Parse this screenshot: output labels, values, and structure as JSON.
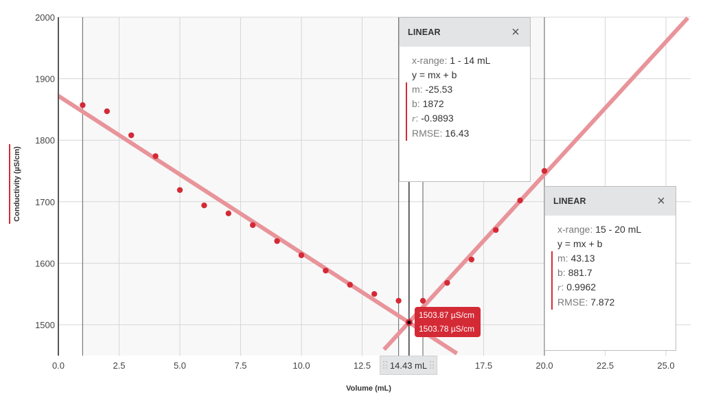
{
  "chart_data": {
    "type": "scatter",
    "title": "",
    "xlabel": "Volume (mL)",
    "ylabel": "Conductivity (µS/cm)",
    "xlim": [
      0,
      25.9
    ],
    "ylim": [
      1450,
      2000
    ],
    "x_ticks": [
      "0.0",
      "2.5",
      "5.0",
      "7.5",
      "10.0",
      "12.5",
      "15.0",
      "17.5",
      "20.0",
      "22.5",
      "25.0"
    ],
    "y_ticks": [
      "1500",
      "1600",
      "1700",
      "1800",
      "1900",
      "2000"
    ],
    "grid": true,
    "series": [
      {
        "name": "Conductivity",
        "color": "#d42a36",
        "x": [
          1,
          2,
          3,
          4,
          5,
          6,
          7,
          8,
          9,
          10,
          11,
          12,
          13,
          14,
          15,
          16,
          17,
          18,
          19,
          20
        ],
        "y": [
          1857,
          1847,
          1808,
          1774,
          1719,
          1694,
          1681,
          1662,
          1636,
          1613,
          1588,
          1565,
          1550,
          1539,
          1539,
          1568,
          1606,
          1654,
          1702,
          1750
        ]
      }
    ],
    "fits": [
      {
        "type": "linear",
        "x_range": [
          1,
          14
        ],
        "m": -25.53,
        "b": 1872,
        "r": -0.9893,
        "rmse": 16.43,
        "draw_from": 0,
        "draw_to": 16.4,
        "color": "#e8949a"
      },
      {
        "type": "linear",
        "x_range": [
          15,
          20
        ],
        "m": 43.13,
        "b": 881.7,
        "r": 0.9962,
        "rmse": 7.872,
        "draw_from": 13.4,
        "draw_to": 25.9,
        "color": "#e8949a"
      }
    ],
    "selection_regions": [
      [
        1,
        14
      ],
      [
        15,
        20
      ]
    ],
    "cursor": {
      "x": 14.43,
      "label": "14.43 mL",
      "y": 1503.8
    }
  },
  "axes": {
    "xlabel": "Volume (mL)",
    "ylabel": "Conductivity (µS/cm)"
  },
  "panels": [
    {
      "title": "LINEAR",
      "close_icon": "×",
      "x_range_label": "x-range:",
      "x_range_value": "1 - 14 mL",
      "equation": "y = mx + b",
      "m_label": "m:",
      "m_value": "-25.53",
      "b_label": "b:",
      "b_value": "1872",
      "r_label": "r",
      "r_sep": ":",
      "r_value": "-0.9893",
      "rmse_label": "RMSE:",
      "rmse_value": "16.43"
    },
    {
      "title": "LINEAR",
      "close_icon": "×",
      "x_range_label": "x-range:",
      "x_range_value": "15 - 20 mL",
      "equation": "y = mx + b",
      "m_label": "m:",
      "m_value": "43.13",
      "b_label": "b:",
      "b_value": "881.7",
      "r_label": "r",
      "r_sep": ":",
      "r_value": "0.9962",
      "rmse_label": "RMSE:",
      "rmse_value": "7.872"
    }
  ],
  "tooltip": {
    "line1": "1503.87 µS/cm",
    "line2": "1503.78 µS/cm"
  },
  "cursor_label": "14.43 mL",
  "colors": {
    "accent": "#d42a36",
    "fit_line": "#e8949a",
    "grid": "#d6d6d6",
    "region_bg": "#f8f8f8",
    "panel_header": "#e3e4e6"
  }
}
